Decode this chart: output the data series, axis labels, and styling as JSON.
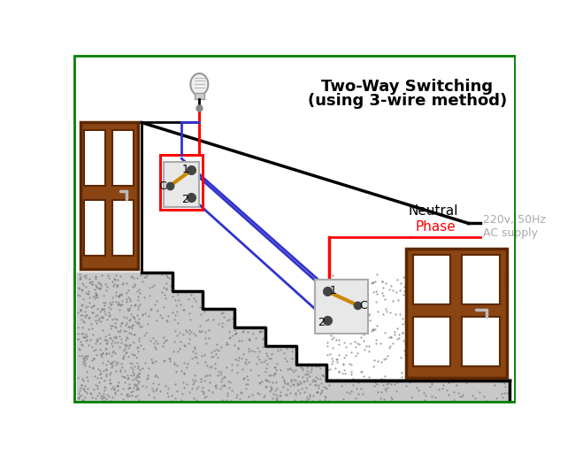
{
  "title_line1": "Two-Way Switching",
  "title_line2": "(using 3-wire method)",
  "bg_color": "#ffffff",
  "border_color": "#008000",
  "neutral_label": "Neutral",
  "phase_label": "Phase",
  "supply_line1": "220v, 50Hz",
  "supply_line2": "AC supply",
  "supply_color": "#aaaaaa",
  "wire_blue": "#3333cc",
  "wire_black": "#000000",
  "wire_red": "#ff0000",
  "lever_color": "#cc8800",
  "door_frame": "#5C2800",
  "door_fill": "#8B4513",
  "stair_fill": "#c8c8c8",
  "stair_dot": "#777777",
  "switch_gray": "#aaaaaa",
  "switch_fill": "#e8e8e8",
  "terminal_color": "#444444",
  "bulb_fill": "#eeeeee",
  "bulb_gray": "#999999"
}
